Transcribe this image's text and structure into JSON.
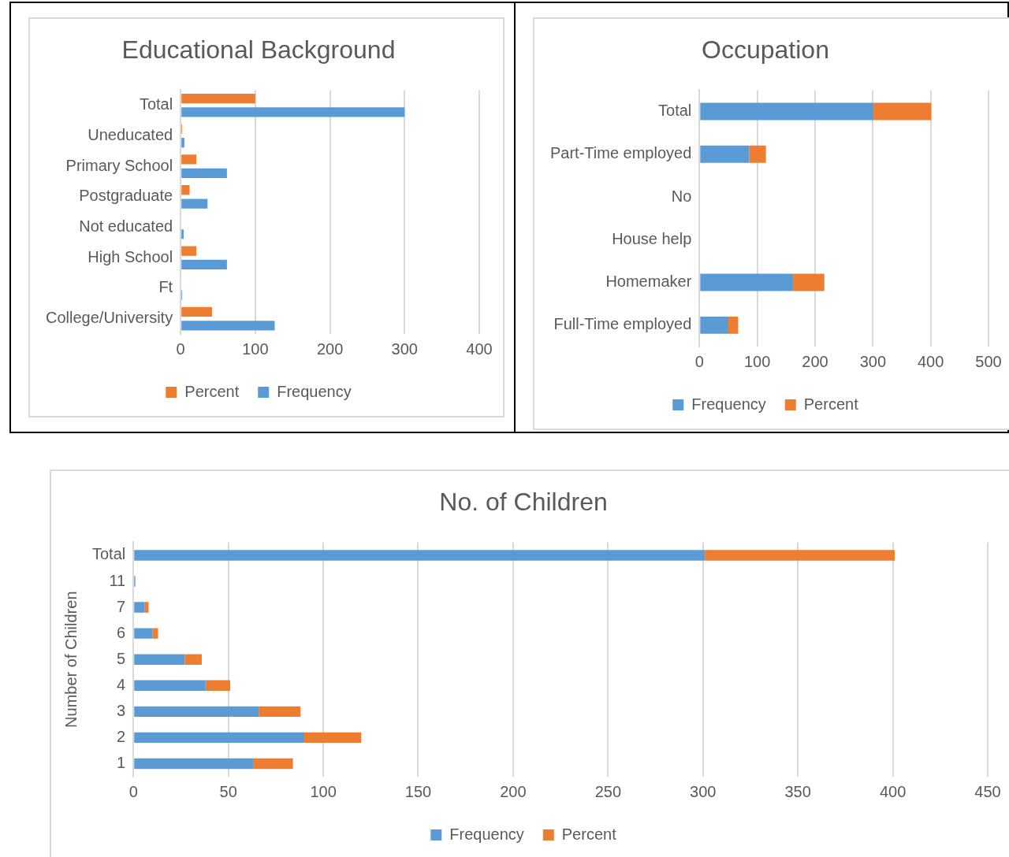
{
  "chart_data": [
    {
      "type": "bar",
      "title": "Educational Background",
      "orientation": "horizontal",
      "categories": [
        "Total",
        "Uneducated",
        "Primary School",
        "Postgraduate",
        "Not educated",
        "High School",
        "Ft",
        "College/University"
      ],
      "series": [
        {
          "name": "Percent",
          "color": "#ed7d31",
          "values": [
            100,
            2,
            21,
            12,
            null,
            21,
            null,
            42
          ]
        },
        {
          "name": "Frequency",
          "color": "#5b9bd5",
          "values": [
            300,
            5,
            62,
            36,
            4,
            62,
            2,
            126
          ]
        }
      ],
      "xlim": [
        0,
        400
      ],
      "xticks": [
        0,
        100,
        200,
        300,
        400
      ],
      "grid": "x",
      "legend": "bottom"
    },
    {
      "type": "bar",
      "title": "Occupation",
      "orientation": "horizontal",
      "stacked": true,
      "categories": [
        "Total",
        "Part-Time employed",
        "No",
        "House help",
        "Homemaker",
        "Full-Time employed"
      ],
      "series": [
        {
          "name": "Frequency",
          "color": "#5b9bd5",
          "values": [
            301,
            86,
            0,
            0,
            162,
            50
          ]
        },
        {
          "name": "Percent",
          "color": "#ed7d31",
          "values": [
            100,
            29,
            0,
            0,
            54,
            17
          ]
        }
      ],
      "xlim": [
        0,
        500
      ],
      "xticks": [
        0,
        100,
        200,
        300,
        400,
        500
      ],
      "grid": "x",
      "legend": "bottom"
    },
    {
      "type": "bar",
      "title": "No. of Children",
      "ylabel": "Number of Children",
      "orientation": "horizontal",
      "stacked": true,
      "categories": [
        "Total",
        "11",
        "7",
        "6",
        "5",
        "4",
        "3",
        "2",
        "1"
      ],
      "series": [
        {
          "name": "Frequency",
          "color": "#5b9bd5",
          "values": [
            301,
            1,
            6,
            10,
            27,
            38,
            66,
            90,
            63
          ]
        },
        {
          "name": "Percent",
          "color": "#ed7d31",
          "values": [
            100,
            null,
            2,
            3,
            9,
            13,
            22,
            30,
            21
          ]
        }
      ],
      "xlim": [
        0,
        450
      ],
      "xticks": [
        0,
        50,
        100,
        150,
        200,
        250,
        300,
        350,
        400,
        450
      ],
      "grid": "x",
      "legend": "bottom"
    }
  ]
}
